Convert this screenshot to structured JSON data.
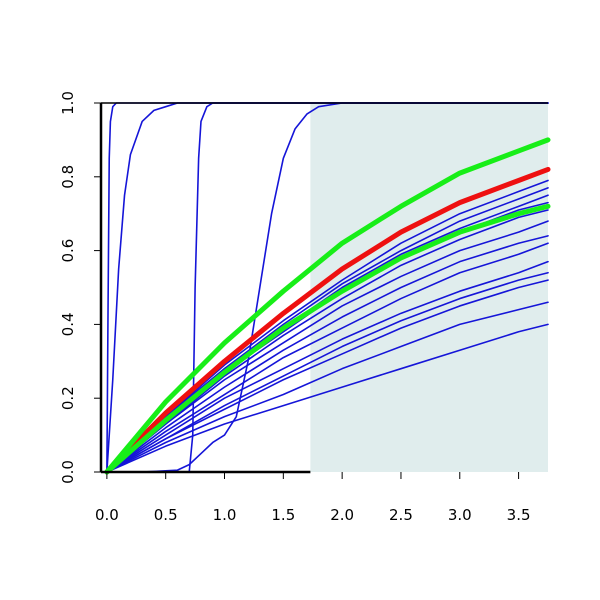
{
  "chart_data": {
    "type": "line",
    "title": "",
    "xlabel": "",
    "ylabel": "",
    "xlim": [
      -0.05,
      3.75
    ],
    "ylim": [
      0,
      1
    ],
    "x_ticks": [
      "0.0",
      "0.5",
      "1.0",
      "1.5",
      "2.0",
      "2.5",
      "3.0",
      "3.5"
    ],
    "y_ticks": [
      "0.0",
      "0.2",
      "0.4",
      "0.6",
      "0.8",
      "1.0"
    ],
    "grid": false,
    "legend": "none",
    "shaded_region": {
      "x_start": 1.73,
      "x_end": 3.75,
      "color": "#e0eded"
    },
    "colors": {
      "blue": "#1515d8",
      "red": "#ee1010",
      "green": "#18ee18",
      "axis": "#000000"
    },
    "series": [
      {
        "color": "blue",
        "points": [
          [
            0,
            0
          ],
          [
            0.01,
            0.45
          ],
          [
            0.02,
            0.85
          ],
          [
            0.03,
            0.95
          ],
          [
            0.05,
            0.99
          ],
          [
            0.08,
            1.0
          ],
          [
            3.75,
            1.0
          ]
        ]
      },
      {
        "color": "blue",
        "points": [
          [
            0,
            0
          ],
          [
            0.05,
            0.25
          ],
          [
            0.1,
            0.55
          ],
          [
            0.15,
            0.75
          ],
          [
            0.2,
            0.86
          ],
          [
            0.3,
            0.95
          ],
          [
            0.4,
            0.98
          ],
          [
            0.5,
            0.99
          ],
          [
            0.6,
            1.0
          ],
          [
            3.75,
            1.0
          ]
        ]
      },
      {
        "color": "blue",
        "points": [
          [
            0,
            0
          ],
          [
            0.7,
            0.0
          ],
          [
            0.73,
            0.1
          ],
          [
            0.75,
            0.5
          ],
          [
            0.78,
            0.85
          ],
          [
            0.8,
            0.95
          ],
          [
            0.85,
            0.99
          ],
          [
            0.9,
            1.0
          ],
          [
            3.75,
            1.0
          ]
        ]
      },
      {
        "color": "blue",
        "points": [
          [
            0,
            0
          ],
          [
            0.3,
            0.0
          ],
          [
            0.6,
            0.005
          ],
          [
            0.7,
            0.02
          ],
          [
            0.8,
            0.05
          ],
          [
            0.9,
            0.08
          ],
          [
            1.0,
            0.1
          ],
          [
            1.1,
            0.15
          ],
          [
            1.2,
            0.3
          ],
          [
            1.3,
            0.5
          ],
          [
            1.4,
            0.7
          ],
          [
            1.5,
            0.85
          ],
          [
            1.6,
            0.93
          ],
          [
            1.7,
            0.97
          ],
          [
            1.8,
            0.99
          ],
          [
            2.0,
            1.0
          ],
          [
            3.75,
            1.0
          ]
        ]
      },
      {
        "color": "blue",
        "points": [
          [
            0,
            0
          ],
          [
            0.5,
            0.07
          ],
          [
            1.0,
            0.13
          ],
          [
            1.5,
            0.18
          ],
          [
            2.0,
            0.23
          ],
          [
            2.5,
            0.28
          ],
          [
            3.0,
            0.33
          ],
          [
            3.5,
            0.38
          ],
          [
            3.75,
            0.4
          ]
        ]
      },
      {
        "color": "blue",
        "points": [
          [
            0,
            0
          ],
          [
            0.5,
            0.08
          ],
          [
            1.0,
            0.15
          ],
          [
            1.5,
            0.21
          ],
          [
            2.0,
            0.28
          ],
          [
            2.5,
            0.34
          ],
          [
            3.0,
            0.4
          ],
          [
            3.5,
            0.44
          ],
          [
            3.75,
            0.46
          ]
        ]
      },
      {
        "color": "blue",
        "points": [
          [
            0,
            0
          ],
          [
            0.5,
            0.09
          ],
          [
            1.0,
            0.17
          ],
          [
            1.5,
            0.25
          ],
          [
            2.0,
            0.32
          ],
          [
            2.5,
            0.39
          ],
          [
            3.0,
            0.45
          ],
          [
            3.5,
            0.5
          ],
          [
            3.75,
            0.52
          ]
        ]
      },
      {
        "color": "blue",
        "points": [
          [
            0,
            0
          ],
          [
            0.5,
            0.09
          ],
          [
            1.0,
            0.18
          ],
          [
            1.5,
            0.26
          ],
          [
            2.0,
            0.34
          ],
          [
            2.5,
            0.41
          ],
          [
            3.0,
            0.47
          ],
          [
            3.5,
            0.52
          ],
          [
            3.75,
            0.54
          ]
        ]
      },
      {
        "color": "blue",
        "points": [
          [
            0,
            0
          ],
          [
            0.5,
            0.1
          ],
          [
            1.0,
            0.2
          ],
          [
            1.5,
            0.28
          ],
          [
            2.0,
            0.36
          ],
          [
            2.5,
            0.43
          ],
          [
            3.0,
            0.49
          ],
          [
            3.5,
            0.54
          ],
          [
            3.75,
            0.57
          ]
        ]
      },
      {
        "color": "blue",
        "points": [
          [
            0,
            0
          ],
          [
            0.5,
            0.11
          ],
          [
            1.0,
            0.21
          ],
          [
            1.5,
            0.31
          ],
          [
            2.0,
            0.39
          ],
          [
            2.5,
            0.47
          ],
          [
            3.0,
            0.54
          ],
          [
            3.5,
            0.59
          ],
          [
            3.75,
            0.62
          ]
        ]
      },
      {
        "color": "blue",
        "points": [
          [
            0,
            0
          ],
          [
            0.5,
            0.12
          ],
          [
            1.0,
            0.23
          ],
          [
            1.5,
            0.33
          ],
          [
            2.0,
            0.42
          ],
          [
            2.5,
            0.5
          ],
          [
            3.0,
            0.57
          ],
          [
            3.5,
            0.62
          ],
          [
            3.75,
            0.64
          ]
        ]
      },
      {
        "color": "blue",
        "points": [
          [
            0,
            0
          ],
          [
            0.5,
            0.13
          ],
          [
            1.0,
            0.25
          ],
          [
            1.5,
            0.35
          ],
          [
            2.0,
            0.45
          ],
          [
            2.5,
            0.53
          ],
          [
            3.0,
            0.6
          ],
          [
            3.5,
            0.65
          ],
          [
            3.75,
            0.68
          ]
        ]
      },
      {
        "color": "blue",
        "points": [
          [
            0,
            0
          ],
          [
            0.5,
            0.13
          ],
          [
            1.0,
            0.26
          ],
          [
            1.5,
            0.37
          ],
          [
            2.0,
            0.47
          ],
          [
            2.5,
            0.56
          ],
          [
            3.0,
            0.63
          ],
          [
            3.5,
            0.69
          ],
          [
            3.75,
            0.71
          ]
        ]
      },
      {
        "color": "blue",
        "points": [
          [
            0,
            0
          ],
          [
            0.5,
            0.14
          ],
          [
            1.0,
            0.27
          ],
          [
            1.5,
            0.38
          ],
          [
            2.0,
            0.49
          ],
          [
            2.5,
            0.58
          ],
          [
            3.0,
            0.65
          ],
          [
            3.5,
            0.71
          ],
          [
            3.75,
            0.73
          ]
        ]
      },
      {
        "color": "blue",
        "points": [
          [
            0,
            0
          ],
          [
            0.5,
            0.14
          ],
          [
            1.0,
            0.28
          ],
          [
            1.5,
            0.39
          ],
          [
            2.0,
            0.5
          ],
          [
            2.5,
            0.59
          ],
          [
            3.0,
            0.66
          ],
          [
            3.5,
            0.72
          ],
          [
            3.75,
            0.75
          ]
        ]
      },
      {
        "color": "blue",
        "points": [
          [
            0,
            0
          ],
          [
            0.5,
            0.15
          ],
          [
            1.0,
            0.28
          ],
          [
            1.5,
            0.4
          ],
          [
            2.0,
            0.51
          ],
          [
            2.5,
            0.6
          ],
          [
            3.0,
            0.68
          ],
          [
            3.5,
            0.74
          ],
          [
            3.75,
            0.77
          ]
        ]
      },
      {
        "color": "blue",
        "points": [
          [
            0,
            0
          ],
          [
            0.5,
            0.15
          ],
          [
            1.0,
            0.29
          ],
          [
            1.5,
            0.41
          ],
          [
            2.0,
            0.52
          ],
          [
            2.5,
            0.62
          ],
          [
            3.0,
            0.7
          ],
          [
            3.5,
            0.76
          ],
          [
            3.75,
            0.79
          ]
        ]
      },
      {
        "color": "red",
        "width": 5,
        "points": [
          [
            0,
            0
          ],
          [
            0.5,
            0.16
          ],
          [
            1.0,
            0.3
          ],
          [
            1.5,
            0.43
          ],
          [
            2.0,
            0.55
          ],
          [
            2.5,
            0.65
          ],
          [
            3.0,
            0.73
          ],
          [
            3.5,
            0.79
          ],
          [
            3.75,
            0.82
          ]
        ]
      },
      {
        "color": "green",
        "width": 5,
        "points": [
          [
            0,
            0
          ],
          [
            0.5,
            0.19
          ],
          [
            1.0,
            0.35
          ],
          [
            1.5,
            0.49
          ],
          [
            2.0,
            0.62
          ],
          [
            2.5,
            0.72
          ],
          [
            3.0,
            0.81
          ],
          [
            3.5,
            0.87
          ],
          [
            3.75,
            0.9
          ]
        ]
      },
      {
        "color": "green",
        "width": 5,
        "points": [
          [
            0,
            0
          ],
          [
            0.5,
            0.14
          ],
          [
            1.0,
            0.27
          ],
          [
            1.5,
            0.39
          ],
          [
            2.0,
            0.49
          ],
          [
            2.5,
            0.58
          ],
          [
            3.0,
            0.65
          ],
          [
            3.5,
            0.7
          ],
          [
            3.75,
            0.72
          ]
        ]
      }
    ]
  }
}
